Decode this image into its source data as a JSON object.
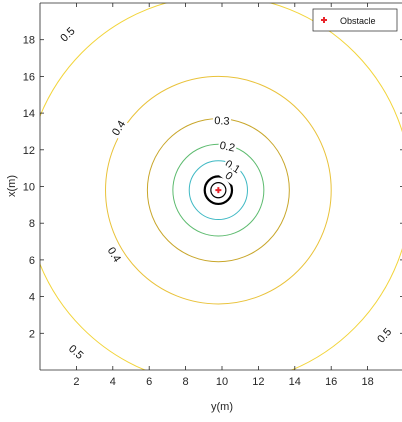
{
  "chart_data": {
    "type": "contour",
    "xlabel": "y(m)",
    "ylabel": "x(m)",
    "xlim": [
      0,
      20
    ],
    "ylim": [
      0,
      20
    ],
    "xticks": [
      2,
      4,
      6,
      8,
      10,
      12,
      14,
      16,
      18
    ],
    "yticks": [
      2,
      4,
      6,
      8,
      10,
      12,
      14,
      16,
      18
    ],
    "obstacle": {
      "label": "Obstacle",
      "x": 9.8,
      "y": 9.8,
      "color": "#e8242b"
    },
    "legend": {
      "entries": [
        "Obstacle"
      ],
      "position": "top-right"
    },
    "center": [
      9.8,
      9.8
    ],
    "contours": [
      {
        "level": "0.5",
        "radius": 10.6,
        "color": "#f2d43a",
        "labels": [
          {
            "text": "0.5",
            "x": 1.5,
            "y": 18.3
          },
          {
            "text": "0.5",
            "x": 2.0,
            "y": 1.0
          },
          {
            "text": "0.5",
            "x": 18.9,
            "y": 1.9
          }
        ]
      },
      {
        "level": "0.4",
        "radius": 6.2,
        "color": "#e9c23a",
        "labels": [
          {
            "text": "0.4",
            "x": 4.3,
            "y": 13.2
          },
          {
            "text": "0.4",
            "x": 4.1,
            "y": 6.3
          }
        ]
      },
      {
        "level": "0.3",
        "radius": 3.9,
        "color": "#c8a62a",
        "labels": [
          {
            "text": "0.3",
            "x": 10.0,
            "y": 13.6
          }
        ]
      },
      {
        "level": "0.2",
        "radius": 2.5,
        "color": "#5dbb6f",
        "labels": [
          {
            "text": "0.2",
            "x": 10.3,
            "y": 12.2
          }
        ]
      },
      {
        "level": "0.1",
        "radius": 1.6,
        "color": "#3fb9c4",
        "labels": [
          {
            "text": "0.1",
            "x": 10.6,
            "y": 11.1
          }
        ]
      },
      {
        "level": "0",
        "radius": 0.75,
        "color": "#000000",
        "labels": [
          {
            "text": "0",
            "x": 10.4,
            "y": 10.6
          }
        ]
      }
    ]
  }
}
